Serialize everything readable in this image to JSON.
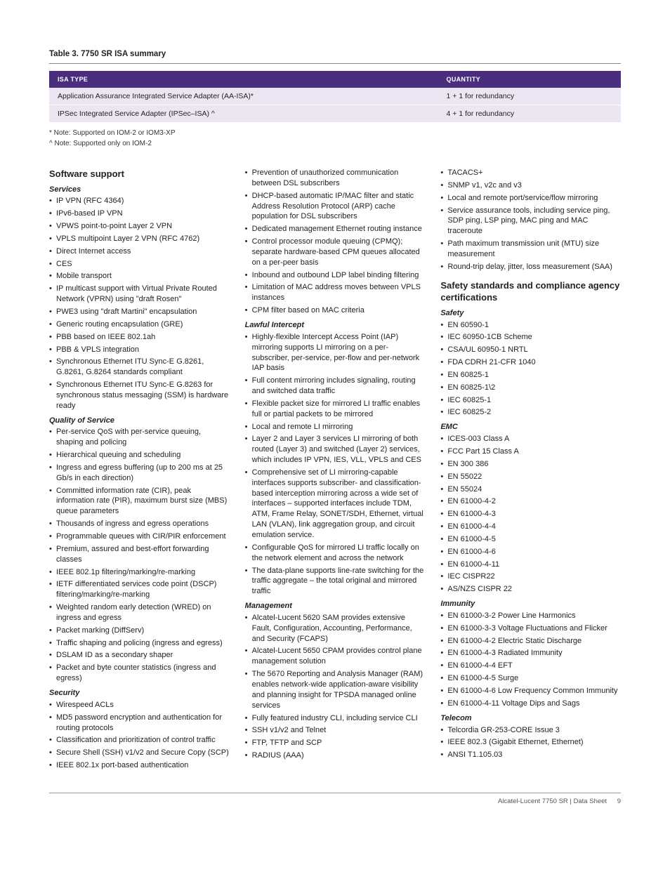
{
  "table": {
    "title": "Table 3. 7750 SR ISA summary",
    "header_bg": "#4a2d7f",
    "row_bg": "#ece6f2",
    "col_type": "ISA TYPE",
    "col_qty": "QUANTITY",
    "rows": [
      {
        "type": "Application Assurance Integrated Service Adapter (AA-ISA)*",
        "qty": "1 + 1 for redundancy"
      },
      {
        "type": "IPSec Integrated Service Adapter (IPSec–ISA) ^",
        "qty": "4 + 1 for redundancy"
      }
    ]
  },
  "notes": {
    "n1": "* Note: Supported on IOM-2 or IOM3-XP",
    "n2": "^ Note: Supported only on IOM-2"
  },
  "col1": {
    "h_software": "Software support",
    "h_services": "Services",
    "services": [
      "IP VPN (RFC 4364)",
      "IPv6-based IP VPN",
      "VPWS point-to-point Layer 2 VPN",
      "VPLS multipoint Layer 2 VPN (RFC 4762)",
      "Direct Internet access",
      "CES",
      "Mobile transport",
      "IP multicast support with Virtual Private Routed Network (VPRN) using \"draft Rosen\"",
      "PWE3 using \"draft Martini\" encapsulation",
      "Generic routing encapsulation (GRE)",
      "PBB based on IEEE 802.1ah",
      "PBB & VPLS integration",
      "Synchronous Ethernet ITU Sync-E G.8261, G.8261, G.8264 standards compliant",
      "Synchronous Ethernet ITU Sync-E G.8263 for synchronous status messaging (SSM) is hardware ready"
    ],
    "h_qos": "Quality of Service",
    "qos": [
      "Per-service QoS with per-service queuing, shaping and policing",
      "Hierarchical queuing and scheduling",
      "Ingress and egress buffering (up to 200 ms at 25 Gb/s in each direction)",
      "Committed information rate (CIR), peak information rate (PIR), maximum burst size (MBS) queue parameters",
      "Thousands of ingress and egress operations",
      "Programmable queues with CIR/PIR enforcement",
      "Premium, assured and best-effort forwarding classes",
      "IEEE 802.1p filtering/marking/re-marking",
      "IETF differentiated services code point (DSCP) filtering/marking/re-marking",
      "Weighted random early detection (WRED) on ingress and egress",
      "Packet marking (DiffServ)",
      "Traffic shaping and policing (ingress and egress)",
      "DSLAM ID as a secondary shaper",
      "Packet and byte counter statistics (ingress and egress)"
    ],
    "h_security": "Security",
    "security": [
      "Wirespeed ACLs",
      "MD5 password encryption and authentication for routing protocols",
      "Classification and prioritization of control traffic",
      "Secure Shell (SSH) v1/v2 and Secure Copy (SCP)",
      "IEEE 802.1x port-based authentication"
    ]
  },
  "col2": {
    "sec_cont": [
      "Prevention of unauthorized communication between DSL subscribers",
      "DHCP-based automatic IP/MAC filter and static Address Resolution Protocol (ARP) cache population for DSL subscribers",
      "Dedicated management Ethernet routing instance",
      "Control processor module queuing (CPMQ); separate hardware-based CPM queues allocated on a per-peer basis",
      "Inbound and outbound LDP label binding filtering",
      "Limitation of MAC address moves between VPLS instances",
      "CPM filter based on MAC criteria"
    ],
    "h_li": "Lawful Intercept",
    "li": [
      "Highly-flexible Intercept Access Point (IAP) mirroring supports LI mirroring on a per-subscriber, per-service, per-flow and per-network IAP basis",
      "Full content mirroring includes signaling, routing and switched data traffic",
      "Flexible packet size for mirrored LI traffic enables full or partial packets to be mirrored",
      "Local and remote LI mirroring",
      "Layer 2 and Layer 3 services LI mirroring of both routed (Layer 3) and switched (Layer 2) services, which includes IP VPN, IES, VLL, VPLS and CES",
      "Comprehensive set of LI mirroring-capable interfaces supports subscriber- and classification-based interception mirroring across a wide set of interfaces – supported interfaces include TDM, ATM, Frame Relay, SONET/SDH, Ethernet, virtual LAN (VLAN), link aggregation group, and circuit emulation service.",
      "Configurable QoS for mirrored LI traffic locally on the network element and across the network",
      "The data-plane supports line-rate switching for the traffic aggregate – the total original and mirrored traffic"
    ],
    "h_mgmt": "Management",
    "mgmt": [
      "Alcatel-Lucent 5620 SAM provides extensive Fault, Configuration, Accounting, Performance, and Security (FCAPS)",
      "Alcatel-Lucent 5650 CPAM provides control plane management solution",
      "The 5670 Reporting and Analysis Manager (RAM) enables network-wide application-aware visibility and planning insight for TPSDA managed online services",
      "Fully featured industry CLI, including service CLI",
      "SSH v1/v2 and Telnet",
      "FTP, TFTP and SCP",
      "RADIUS (AAA)"
    ]
  },
  "col3": {
    "mgmt_cont": [
      "TACACS+",
      "SNMP v1, v2c and v3",
      "Local and remote port/service/flow mirroring",
      "Service assurance tools, including service ping, SDP ping, LSP ping, MAC ping and MAC traceroute",
      "Path maximum transmission unit (MTU) size measurement",
      "Round-trip delay, jitter, loss measurement (SAA)"
    ],
    "h_safety_std": "Safety standards and compliance agency certifications",
    "h_safety": "Safety",
    "safety": [
      "EN 60590-1",
      "IEC 60950-1CB Scheme",
      "CSA/UL 60950-1 NRTL",
      "FDA CDRH 21-CFR 1040",
      "EN 60825-1",
      "EN 60825-1\\2",
      "IEC 60825-1",
      "IEC 60825-2"
    ],
    "h_emc": "EMC",
    "emc": [
      "ICES-003 Class A",
      "FCC Part 15 Class A",
      "EN 300 386",
      "EN 55022",
      "EN 55024",
      "EN 61000-4-2",
      "EN 61000-4-3",
      "EN 61000-4-4",
      "EN 61000-4-5",
      "EN 61000-4-6",
      "EN 61000-4-11",
      "IEC CISPR22",
      "AS/NZS CISPR 22"
    ],
    "h_immunity": "Immunity",
    "immunity": [
      "EN 61000-3-2 Power Line Harmonics",
      "EN 61000-3-3 Voltage Fluctuations and Flicker",
      "EN 61000-4-2 Electric Static Discharge",
      "EN 61000-4-3 Radiated Immunity",
      "EN 61000-4-4 EFT",
      "EN 61000-4-5 Surge",
      "EN 61000-4-6 Low Frequency Common Immunity",
      "EN 61000-4-11 Voltage Dips and Sags"
    ],
    "h_telecom": "Telecom",
    "telecom": [
      "Telcordia GR-253-CORE Issue 3",
      "IEEE 802.3 (Gigabit Ethernet, Ethernet)",
      "ANSI T1.105.03"
    ]
  },
  "footer": {
    "text": "Alcatel-Lucent 7750 SR  |  Data Sheet",
    "page": "9"
  }
}
